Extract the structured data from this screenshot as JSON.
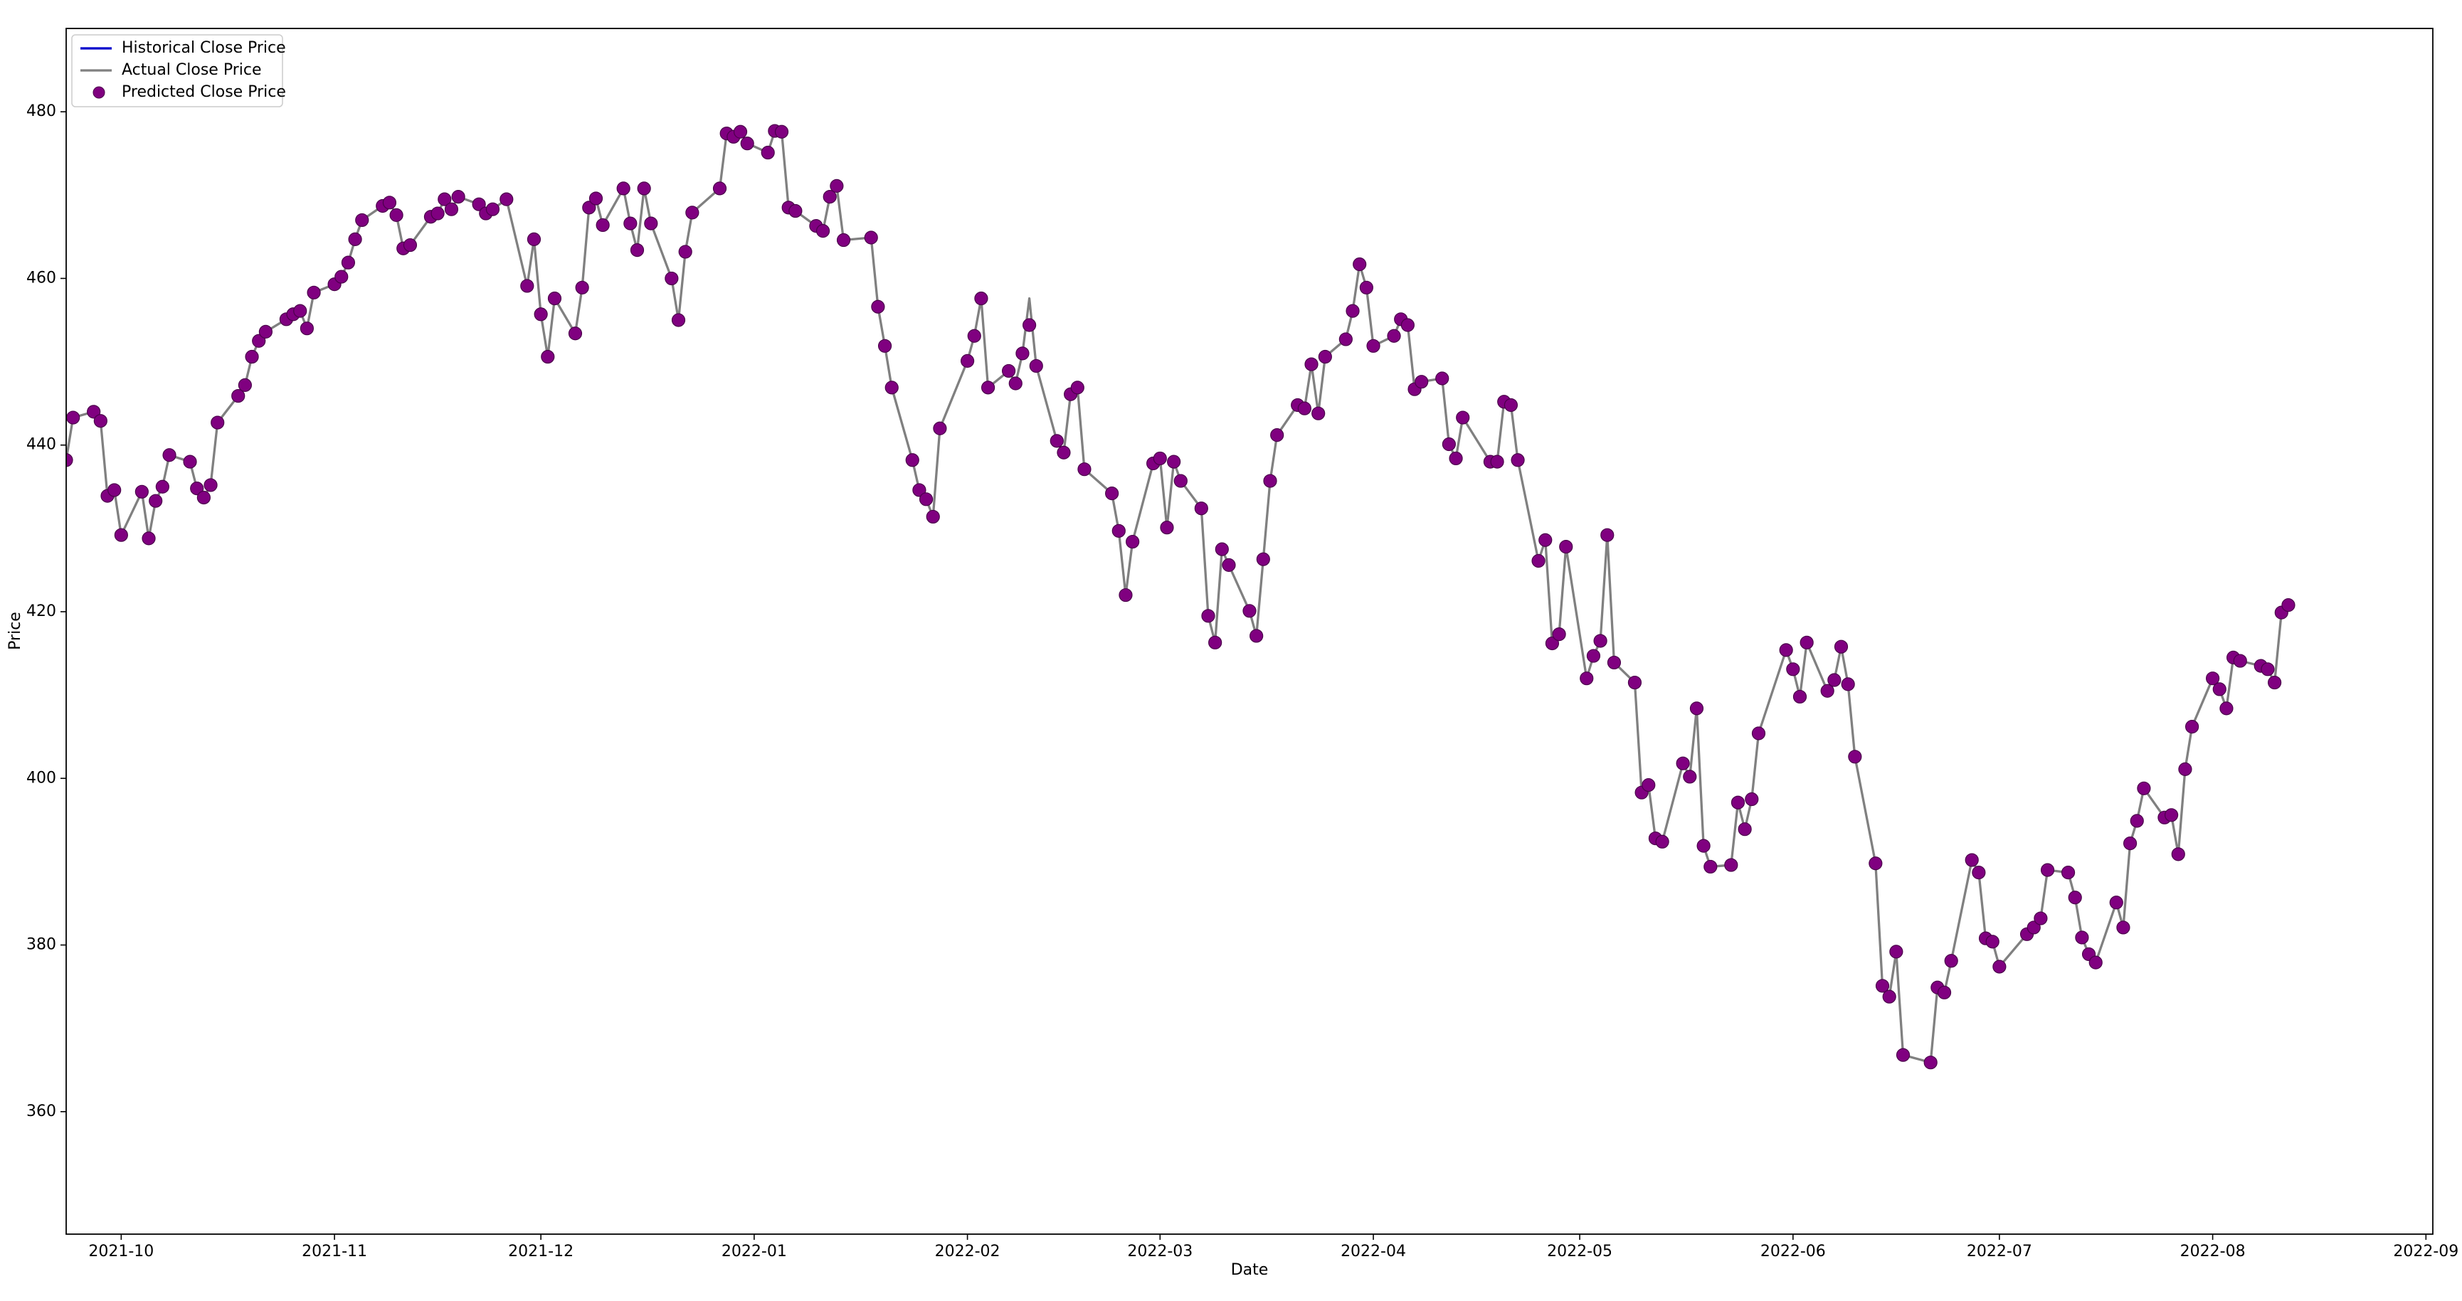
{
  "chart_data": {
    "type": "line",
    "xlabel": "Date",
    "ylabel": "Price",
    "legend": "upper left",
    "x": [
      "2021-09-23",
      "2021-09-24",
      "2021-09-27",
      "2021-09-28",
      "2021-09-29",
      "2021-09-30",
      "2021-10-01",
      "2021-10-04",
      "2021-10-05",
      "2021-10-06",
      "2021-10-07",
      "2021-10-08",
      "2021-10-11",
      "2021-10-12",
      "2021-10-13",
      "2021-10-14",
      "2021-10-15",
      "2021-10-18",
      "2021-10-19",
      "2021-10-20",
      "2021-10-21",
      "2021-10-22",
      "2021-10-25",
      "2021-10-26",
      "2021-10-27",
      "2021-10-28",
      "2021-10-29",
      "2021-11-01",
      "2021-11-02",
      "2021-11-03",
      "2021-11-04",
      "2021-11-05",
      "2021-11-08",
      "2021-11-09",
      "2021-11-10",
      "2021-11-11",
      "2021-11-12",
      "2021-11-15",
      "2021-11-16",
      "2021-11-17",
      "2021-11-18",
      "2021-11-19",
      "2021-11-22",
      "2021-11-23",
      "2021-11-24",
      "2021-11-26",
      "2021-11-29",
      "2021-11-30",
      "2021-12-01",
      "2021-12-02",
      "2021-12-03",
      "2021-12-06",
      "2021-12-07",
      "2021-12-08",
      "2021-12-09",
      "2021-12-10",
      "2021-12-13",
      "2021-12-14",
      "2021-12-15",
      "2021-12-16",
      "2021-12-17",
      "2021-12-20",
      "2021-12-21",
      "2021-12-22",
      "2021-12-23",
      "2021-12-27",
      "2021-12-28",
      "2021-12-29",
      "2021-12-30",
      "2021-12-31",
      "2022-01-03",
      "2022-01-04",
      "2022-01-05",
      "2022-01-06",
      "2022-01-07",
      "2022-01-10",
      "2022-01-11",
      "2022-01-12",
      "2022-01-13",
      "2022-01-14",
      "2022-01-18",
      "2022-01-19",
      "2022-01-20",
      "2022-01-21",
      "2022-01-24",
      "2022-01-25",
      "2022-01-26",
      "2022-01-27",
      "2022-01-28",
      "2022-02-01",
      "2022-02-02",
      "2022-02-03",
      "2022-02-04",
      "2022-02-07",
      "2022-02-08",
      "2022-02-09",
      "2022-02-10",
      "2022-02-11",
      "2022-02-14",
      "2022-02-15",
      "2022-02-16",
      "2022-02-17",
      "2022-02-18",
      "2022-02-22",
      "2022-02-23",
      "2022-02-24",
      "2022-02-25",
      "2022-02-28",
      "2022-03-01",
      "2022-03-02",
      "2022-03-03",
      "2022-03-04",
      "2022-03-07",
      "2022-03-08",
      "2022-03-09",
      "2022-03-10",
      "2022-03-11",
      "2022-03-14",
      "2022-03-15",
      "2022-03-16",
      "2022-03-17",
      "2022-03-18",
      "2022-03-21",
      "2022-03-22",
      "2022-03-23",
      "2022-03-24",
      "2022-03-25",
      "2022-03-28",
      "2022-03-29",
      "2022-03-30",
      "2022-03-31",
      "2022-04-01",
      "2022-04-04",
      "2022-04-05",
      "2022-04-06",
      "2022-04-07",
      "2022-04-08",
      "2022-04-11",
      "2022-04-12",
      "2022-04-13",
      "2022-04-14",
      "2022-04-18",
      "2022-04-19",
      "2022-04-20",
      "2022-04-21",
      "2022-04-22",
      "2022-04-25",
      "2022-04-26",
      "2022-04-27",
      "2022-04-28",
      "2022-04-29",
      "2022-05-02",
      "2022-05-03",
      "2022-05-04",
      "2022-05-05",
      "2022-05-06",
      "2022-05-09",
      "2022-05-10",
      "2022-05-11",
      "2022-05-12",
      "2022-05-13",
      "2022-05-16",
      "2022-05-17",
      "2022-05-18",
      "2022-05-19",
      "2022-05-20",
      "2022-05-23",
      "2022-05-24",
      "2022-05-25",
      "2022-05-26",
      "2022-05-27",
      "2022-05-31",
      "2022-06-01",
      "2022-06-02",
      "2022-06-03",
      "2022-06-06",
      "2022-06-07",
      "2022-06-08",
      "2022-06-09",
      "2022-06-10",
      "2022-06-13",
      "2022-06-14",
      "2022-06-15",
      "2022-06-16",
      "2022-06-17",
      "2022-06-21",
      "2022-06-22",
      "2022-06-23",
      "2022-06-24",
      "2022-06-27",
      "2022-06-28",
      "2022-06-29",
      "2022-06-30",
      "2022-07-01",
      "2022-07-05",
      "2022-07-06",
      "2022-07-07",
      "2022-07-08",
      "2022-07-11",
      "2022-07-12",
      "2022-07-13",
      "2022-07-14",
      "2022-07-15",
      "2022-07-18",
      "2022-07-19",
      "2022-07-20",
      "2022-07-21",
      "2022-07-22",
      "2022-07-25",
      "2022-07-26",
      "2022-07-27",
      "2022-07-28",
      "2022-07-29",
      "2022-08-01",
      "2022-08-02",
      "2022-08-03",
      "2022-08-04",
      "2022-08-05",
      "2022-08-08",
      "2022-08-09",
      "2022-08-10",
      "2022-08-11",
      "2022-08-12"
    ],
    "series": [
      {
        "name": "Historical Close Price",
        "color": "#0000cc",
        "type": "line"
      },
      {
        "name": "Actual Close Price",
        "color": "#808080",
        "type": "line",
        "values": [
          438.2,
          443.3,
          444.0,
          442.9,
          433.9,
          434.6,
          429.2,
          434.4,
          428.8,
          433.3,
          435.0,
          438.8,
          438.0,
          434.8,
          433.7,
          435.2,
          442.7,
          445.9,
          447.2,
          450.6,
          452.5,
          453.6,
          455.1,
          455.7,
          456.1,
          454.0,
          458.3,
          459.3,
          460.2,
          461.9,
          464.7,
          467.0,
          468.7,
          469.1,
          467.6,
          463.6,
          464.0,
          467.4,
          467.8,
          469.5,
          468.3,
          469.8,
          468.9,
          467.8,
          468.3,
          469.5,
          459.1,
          464.7,
          455.7,
          450.6,
          457.6,
          453.4,
          458.9,
          468.5,
          469.6,
          466.4,
          470.8,
          466.6,
          463.4,
          470.8,
          466.6,
          460.0,
          455.0,
          463.2,
          467.9,
          470.8,
          477.4,
          477.0,
          477.6,
          476.2,
          475.1,
          477.7,
          477.6,
          468.5,
          468.1,
          466.3,
          465.7,
          469.8,
          471.1,
          464.6,
          464.9,
          456.6,
          451.9,
          446.9,
          438.2,
          434.6,
          433.5,
          431.4,
          442.0,
          450.1,
          453.1,
          457.6,
          446.9,
          448.9,
          447.4,
          451.0,
          457.6,
          449.5,
          440.5,
          439.1,
          446.1,
          446.9,
          437.1,
          434.2,
          429.7,
          422.0,
          428.4,
          437.8,
          438.4,
          430.1,
          438.0,
          435.7,
          432.4,
          419.5,
          416.3,
          427.5,
          425.6,
          420.1,
          417.1,
          426.3,
          435.7,
          441.2,
          444.8,
          444.4,
          449.7,
          443.8,
          450.6,
          452.7,
          456.1,
          461.7,
          458.9,
          451.9,
          453.1,
          455.1,
          454.4,
          446.7,
          447.6,
          448.0,
          440.1,
          438.4,
          443.3,
          438.0,
          438.0,
          445.2,
          444.8,
          438.2,
          426.1,
          428.6,
          416.2,
          417.3,
          427.8,
          412.0,
          414.7,
          416.5,
          429.2,
          413.9,
          411.5,
          398.3,
          399.2,
          392.8,
          392.4,
          401.8,
          400.2,
          408.4,
          391.9,
          389.4,
          389.6,
          397.1,
          393.9,
          397.5,
          405.4,
          415.4,
          413.1,
          409.8,
          416.3,
          410.5,
          411.8,
          415.8,
          411.3,
          402.6,
          389.8,
          375.1,
          373.8,
          379.2,
          366.8,
          365.9,
          374.9,
          374.3,
          378.1,
          390.2,
          388.7,
          380.8,
          380.4,
          377.4,
          381.3,
          382.1,
          383.2,
          389.0,
          388.7,
          385.7,
          380.9,
          378.9,
          377.9,
          385.1,
          382.1,
          392.2,
          394.9,
          398.8,
          395.3,
          395.6,
          390.9,
          401.1,
          406.2,
          412.0,
          410.7,
          408.4,
          414.5,
          414.1,
          413.5,
          413.1,
          411.5,
          419.9,
          420.8
        ]
      },
      {
        "name": "Predicted Close Price",
        "color": "#800080",
        "type": "scatter",
        "values": [
          438.2,
          443.3,
          444.0,
          442.9,
          433.9,
          434.6,
          429.2,
          434.4,
          428.8,
          433.3,
          435.0,
          438.8,
          438.0,
          434.8,
          433.7,
          435.2,
          442.7,
          445.9,
          447.2,
          450.6,
          452.5,
          453.6,
          455.1,
          455.7,
          456.1,
          454.0,
          458.3,
          459.3,
          460.2,
          461.9,
          464.7,
          467.0,
          468.7,
          469.1,
          467.6,
          463.6,
          464.0,
          467.4,
          467.8,
          469.5,
          468.3,
          469.8,
          468.9,
          467.8,
          468.3,
          469.5,
          459.1,
          464.7,
          455.7,
          450.6,
          457.6,
          453.4,
          458.9,
          468.5,
          469.6,
          466.4,
          470.8,
          466.6,
          463.4,
          470.8,
          466.6,
          460.0,
          455.0,
          463.2,
          467.9,
          470.8,
          477.4,
          477.0,
          477.6,
          476.2,
          475.1,
          477.7,
          477.6,
          468.5,
          468.1,
          466.3,
          465.7,
          469.8,
          471.1,
          464.6,
          464.9,
          456.6,
          451.9,
          446.9,
          438.2,
          434.6,
          433.5,
          431.4,
          442.0,
          450.1,
          453.1,
          457.6,
          446.9,
          448.9,
          447.4,
          451.0,
          454.4,
          449.5,
          440.5,
          439.1,
          446.1,
          446.9,
          437.1,
          434.2,
          429.7,
          422.0,
          428.4,
          437.8,
          438.4,
          430.1,
          438.0,
          435.7,
          432.4,
          419.5,
          416.3,
          427.5,
          425.6,
          420.1,
          417.1,
          426.3,
          435.7,
          441.2,
          444.8,
          444.4,
          449.7,
          443.8,
          450.6,
          452.7,
          456.1,
          461.7,
          458.9,
          451.9,
          453.1,
          455.1,
          454.4,
          446.7,
          447.6,
          448.0,
          440.1,
          438.4,
          443.3,
          438.0,
          438.0,
          445.2,
          444.8,
          438.2,
          426.1,
          428.6,
          416.2,
          417.3,
          427.8,
          412.0,
          414.7,
          416.5,
          429.2,
          413.9,
          411.5,
          398.3,
          399.2,
          392.8,
          392.4,
          401.8,
          400.2,
          408.4,
          391.9,
          389.4,
          389.6,
          397.1,
          393.9,
          397.5,
          405.4,
          415.4,
          413.1,
          409.8,
          416.3,
          410.5,
          411.8,
          415.8,
          411.3,
          402.6,
          389.8,
          375.1,
          373.8,
          379.2,
          366.8,
          365.9,
          374.9,
          374.3,
          378.1,
          390.2,
          388.7,
          380.8,
          380.4,
          377.4,
          381.3,
          382.1,
          383.2,
          389.0,
          388.7,
          385.7,
          380.9,
          378.9,
          377.9,
          385.1,
          382.1,
          392.2,
          394.9,
          398.8,
          395.3,
          395.6,
          390.9,
          401.1,
          406.2,
          412.0,
          410.7,
          408.4,
          414.5,
          414.1,
          413.5,
          413.1,
          411.5,
          419.9,
          420.8
        ]
      }
    ],
    "xlim": [
      "2021-09-23",
      "2022-09-02"
    ],
    "xticks": [
      {
        "value": "2021-10-01",
        "label": "2021-10"
      },
      {
        "value": "2021-11-01",
        "label": "2021-11"
      },
      {
        "value": "2021-12-01",
        "label": "2021-12"
      },
      {
        "value": "2022-01-01",
        "label": "2022-01"
      },
      {
        "value": "2022-02-01",
        "label": "2022-02"
      },
      {
        "value": "2022-03-01",
        "label": "2022-03"
      },
      {
        "value": "2022-04-01",
        "label": "2022-04"
      },
      {
        "value": "2022-05-01",
        "label": "2022-05"
      },
      {
        "value": "2022-06-01",
        "label": "2022-06"
      },
      {
        "value": "2022-07-01",
        "label": "2022-07"
      },
      {
        "value": "2022-08-01",
        "label": "2022-08"
      },
      {
        "value": "2022-09-01",
        "label": "2022-09"
      }
    ],
    "ylim": [
      345.3,
      490
    ],
    "yticks": [
      360,
      380,
      400,
      420,
      440,
      460,
      480
    ]
  }
}
